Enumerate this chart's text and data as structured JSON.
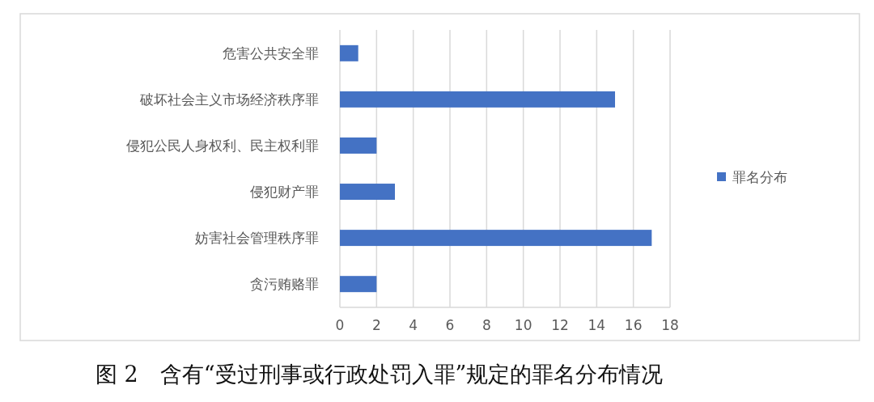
{
  "chart_data": {
    "type": "bar",
    "orientation": "horizontal",
    "title": "图 2　含有“受过刑事或行政处罚入罪”规定的罪名分布情况",
    "categories": [
      "危害公共安全罪",
      "破坏社会主义市场经济秩序罪",
      "侵犯公民人身权利、民主权利罪",
      "侵犯财产罪",
      "妨害社会管理秩序罪",
      "贪污贿赂罪"
    ],
    "series": [
      {
        "name": "罪名分布",
        "color": "#4472c4",
        "values": [
          1,
          15,
          2,
          3,
          17,
          2
        ]
      }
    ],
    "xlim": [
      0,
      18
    ],
    "xticks": [
      0,
      2,
      4,
      6,
      8,
      10,
      12,
      14,
      16,
      18
    ],
    "grid": "x",
    "legend": "right"
  }
}
